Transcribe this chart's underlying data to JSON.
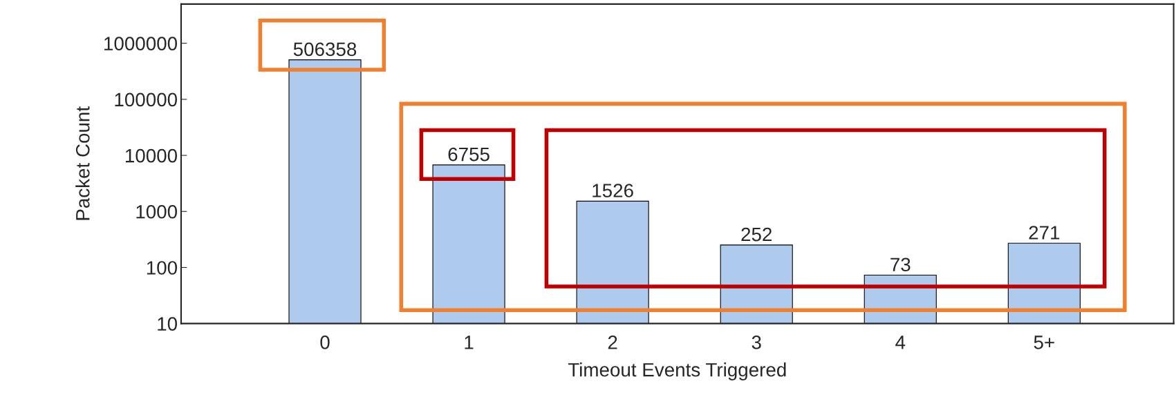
{
  "chart_data": {
    "type": "bar",
    "xlabel": "Timeout Events Triggered",
    "ylabel": "Packet Count",
    "categories": [
      "0",
      "1",
      "2",
      "3",
      "4",
      "5+"
    ],
    "values": [
      506358,
      6755,
      1526,
      252,
      73,
      271
    ],
    "color": "#aecbed",
    "log": true,
    "ylim": [
      10,
      5000000
    ],
    "yticks": [
      10,
      100,
      1000,
      10000,
      100000,
      1000000
    ],
    "data_labels": true,
    "grid": false
  }
}
